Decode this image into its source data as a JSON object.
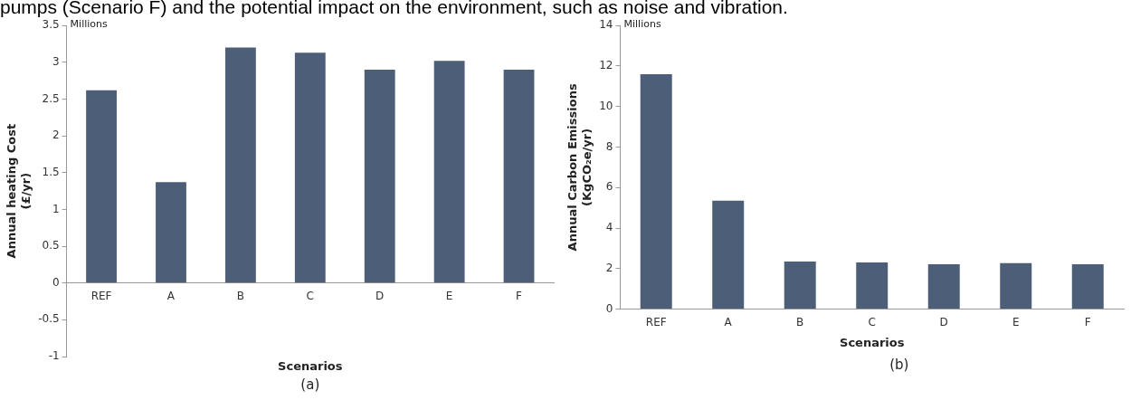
{
  "chart_data": [
    {
      "type": "bar",
      "xlabel": "Scenarios",
      "ylabel": "Annual heating Cost (£/yr)",
      "categories": [
        "REF",
        "A",
        "B",
        "C",
        "D",
        "E",
        "F"
      ],
      "values": [
        2.62,
        1.37,
        3.2,
        3.13,
        2.9,
        3.02,
        2.9
      ],
      "color": "#4d5f78",
      "ylim": [
        -1,
        3.5
      ],
      "yticks": [
        -1,
        -0.5,
        0,
        0.5,
        1,
        1.5,
        2,
        2.5,
        3,
        3.5
      ],
      "grid": false,
      "legend": false,
      "annotations": [
        "pumps (Scenario F) and the potential impact on the environment, such as noise and vibration.",
        "Millions",
        "(a)"
      ]
    },
    {
      "type": "bar",
      "xlabel": "Scenarios",
      "ylabel": "Annual Carbon Emissions (KgCO₂e/yr)",
      "categories": [
        "REF",
        "A",
        "B",
        "C",
        "D",
        "E",
        "F"
      ],
      "values": [
        11.6,
        5.35,
        2.35,
        2.3,
        2.22,
        2.27,
        2.22
      ],
      "color": "#4d5f78",
      "ylim": [
        0,
        14
      ],
      "yticks": [
        0,
        2,
        4,
        6,
        8,
        10,
        12,
        14
      ],
      "grid": false,
      "legend": false,
      "annotations": [
        "Millions",
        "(b)"
      ]
    }
  ]
}
